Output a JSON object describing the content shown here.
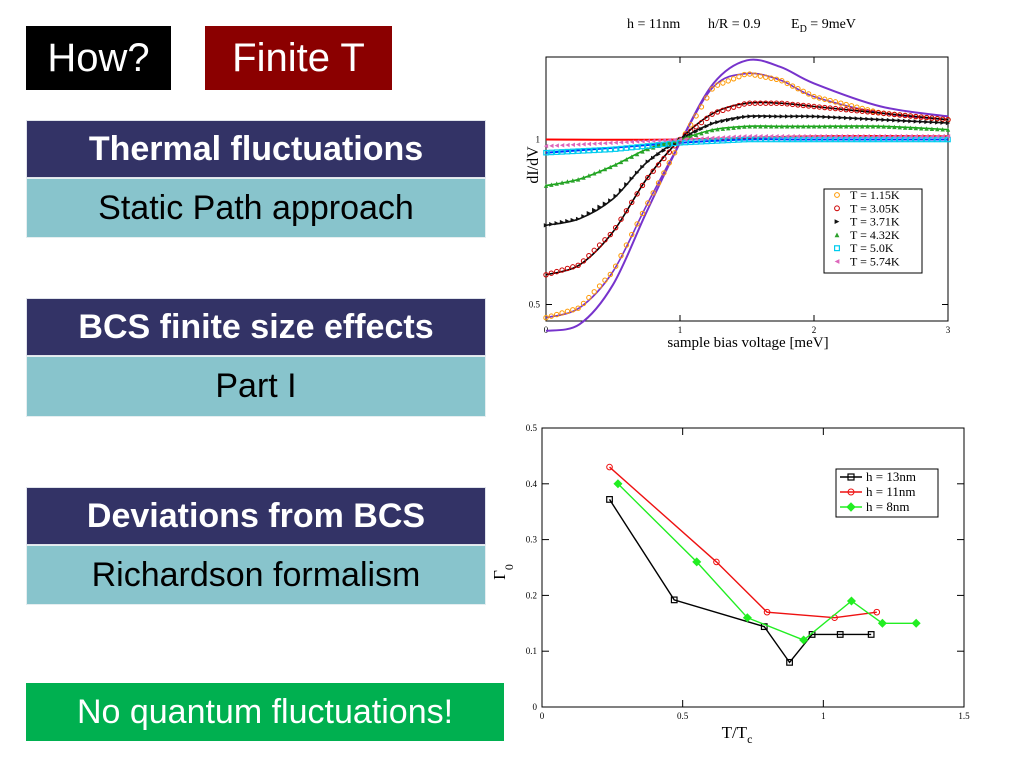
{
  "tags": {
    "how": "How?",
    "finite": "Finite T"
  },
  "boxes": [
    {
      "title": "Thermal fluctuations",
      "sub": "Static Path approach"
    },
    {
      "title": "BCS finite size effects",
      "sub": "Part I"
    },
    {
      "title": "Deviations from BCS",
      "sub": "Richardson formalism"
    }
  ],
  "banner": "No quantum fluctuations!",
  "colors": {
    "title_bg": "#333366",
    "sub_bg": "#88c4cc",
    "how_bg": "#000000",
    "finite_bg": "#8b0000",
    "banner_bg": "#00b050"
  },
  "chart_data": [
    {
      "type": "line",
      "title": {
        "h": "h = 11nm",
        "hR": "h/R = 0.9",
        "ED": "E",
        "ED_sub": "D",
        "ED_val": " = 9meV"
      },
      "xlabel": "sample bias voltage [meV]",
      "ylabel": "dI/dV",
      "xlim": [
        0,
        3
      ],
      "ylim": [
        0.45,
        1.25
      ],
      "xticks": [
        "0",
        "1",
        "2",
        "3"
      ],
      "yticks": [
        "0.5",
        "1"
      ],
      "legend_position": "bottom-right",
      "series": [
        {
          "name": "T = 1.15K",
          "color": "#ff9900",
          "marker": "circle",
          "data": [
            [
              0,
              0.46
            ],
            [
              0.25,
              0.49
            ],
            [
              0.5,
              0.6
            ],
            [
              0.75,
              0.8
            ],
            [
              1,
              0.99
            ],
            [
              1.25,
              1.16
            ],
            [
              1.5,
              1.2
            ],
            [
              1.75,
              1.18
            ],
            [
              2,
              1.13
            ],
            [
              2.5,
              1.08
            ],
            [
              3,
              1.06
            ]
          ]
        },
        {
          "name": "T = 3.05K",
          "color": "#cc0000",
          "marker": "circle",
          "data": [
            [
              0,
              0.59
            ],
            [
              0.25,
              0.62
            ],
            [
              0.5,
              0.72
            ],
            [
              0.75,
              0.88
            ],
            [
              1,
              1.0
            ],
            [
              1.25,
              1.08
            ],
            [
              1.5,
              1.11
            ],
            [
              1.75,
              1.11
            ],
            [
              2,
              1.1
            ],
            [
              2.5,
              1.08
            ],
            [
              3,
              1.06
            ]
          ]
        },
        {
          "name": "T = 3.71K",
          "color": "#111111",
          "marker": "triangle-right",
          "data": [
            [
              0,
              0.74
            ],
            [
              0.25,
              0.76
            ],
            [
              0.5,
              0.82
            ],
            [
              0.75,
              0.93
            ],
            [
              1,
              1.0
            ],
            [
              1.25,
              1.05
            ],
            [
              1.5,
              1.07
            ],
            [
              1.75,
              1.07
            ],
            [
              2,
              1.07
            ],
            [
              2.5,
              1.06
            ],
            [
              3,
              1.05
            ]
          ]
        },
        {
          "name": "T = 4.32K",
          "color": "#2ca02c",
          "marker": "triangle-up",
          "data": [
            [
              0,
              0.86
            ],
            [
              0.25,
              0.88
            ],
            [
              0.5,
              0.92
            ],
            [
              0.75,
              0.97
            ],
            [
              1,
              1.0
            ],
            [
              1.25,
              1.03
            ],
            [
              1.5,
              1.04
            ],
            [
              1.75,
              1.04
            ],
            [
              2,
              1.04
            ],
            [
              2.5,
              1.04
            ],
            [
              3,
              1.03
            ]
          ]
        },
        {
          "name": "T = 5.0K",
          "color": "#00ccee",
          "marker": "square",
          "data": [
            [
              0,
              0.96
            ],
            [
              0.5,
              0.97
            ],
            [
              1,
              0.99
            ],
            [
              1.5,
              1.0
            ],
            [
              2,
              1.0
            ],
            [
              2.5,
              1.0
            ],
            [
              3,
              1.0
            ]
          ]
        },
        {
          "name": "T = 5.74K",
          "color": "#dd66bb",
          "marker": "triangle-left",
          "data": [
            [
              0,
              0.98
            ],
            [
              0.5,
              0.99
            ],
            [
              1,
              1.0
            ],
            [
              1.5,
              1.01
            ],
            [
              2,
              1.01
            ],
            [
              2.5,
              1.01
            ],
            [
              3,
              1.01
            ]
          ]
        }
      ],
      "fit_lines": [
        {
          "color": "#7733cc",
          "data": [
            [
              0,
              0.42
            ],
            [
              0.25,
              0.44
            ],
            [
              0.5,
              0.56
            ],
            [
              0.75,
              0.78
            ],
            [
              1,
              0.99
            ],
            [
              1.25,
              1.17
            ],
            [
              1.5,
              1.24
            ],
            [
              1.75,
              1.22
            ],
            [
              2,
              1.17
            ],
            [
              2.5,
              1.1
            ],
            [
              3,
              1.07
            ]
          ]
        },
        {
          "color": "#ff0000",
          "data": [
            [
              0,
              1.0
            ],
            [
              1,
              1.0
            ],
            [
              2,
              1.01
            ],
            [
              3,
              1.01
            ]
          ]
        },
        {
          "color": "#0033ff",
          "data": [
            [
              0,
              0.96
            ],
            [
              0.5,
              0.975
            ],
            [
              1,
              0.99
            ],
            [
              1.5,
              1.0
            ],
            [
              2,
              1.0
            ],
            [
              3,
              1.0
            ]
          ]
        }
      ]
    },
    {
      "type": "line",
      "xlabel": "T/T",
      "xlabel_sub": "c",
      "ylabel": "Γ",
      "ylabel_sub": "0",
      "xlim": [
        0,
        1.5
      ],
      "ylim": [
        0,
        0.5
      ],
      "xticks": [
        "0",
        "0.5",
        "1",
        "1.5"
      ],
      "yticks": [
        "0",
        "0.1",
        "0.2",
        "0.3",
        "0.4",
        "0.5"
      ],
      "legend_position": "top-right",
      "series": [
        {
          "name": "h = 13nm",
          "color": "#000000",
          "marker": "square",
          "x": [
            0.24,
            0.47,
            0.79,
            0.88,
            0.96,
            1.06,
            1.17
          ],
          "y": [
            0.372,
            0.192,
            0.144,
            0.08,
            0.13,
            0.13,
            0.13
          ]
        },
        {
          "name": "h = 11nm",
          "color": "#ee1111",
          "marker": "circle",
          "x": [
            0.24,
            0.62,
            0.8,
            1.04,
            1.19
          ],
          "y": [
            0.43,
            0.26,
            0.17,
            0.16,
            0.17
          ]
        },
        {
          "name": "h = 8nm",
          "color": "#22ee22",
          "marker": "diamond",
          "x": [
            0.27,
            0.55,
            0.73,
            0.93,
            1.1,
            1.21,
            1.33
          ],
          "y": [
            0.4,
            0.26,
            0.16,
            0.12,
            0.19,
            0.15,
            0.15
          ]
        }
      ]
    }
  ]
}
